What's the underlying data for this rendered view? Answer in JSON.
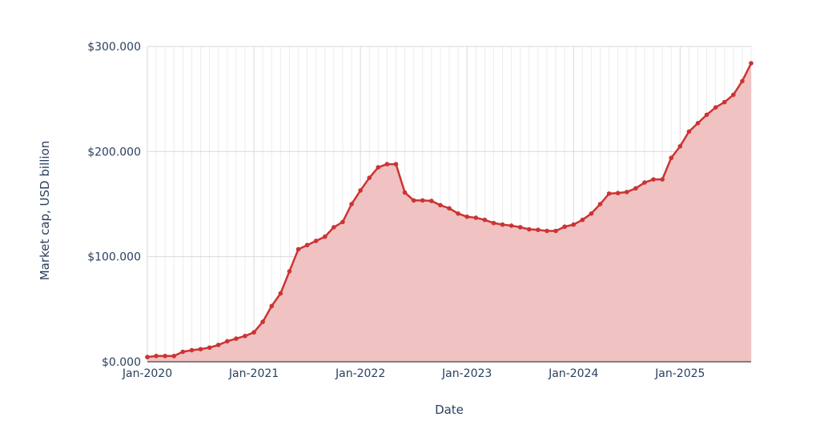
{
  "chart_data": {
    "type": "area",
    "title": "",
    "xlabel": "Date",
    "ylabel": "Market cap, USD billion",
    "x_ticks": [
      "Jan-2020",
      "Jan-2021",
      "Jan-2022",
      "Jan-2023",
      "Jan-2024",
      "Jan-2025"
    ],
    "y_ticks": [
      "$0.000",
      "$100.000",
      "$200.000",
      "$300.000"
    ],
    "ylim": [
      0,
      300
    ],
    "xlim": [
      "2020-01",
      "2025-09"
    ],
    "grid": true,
    "colors": {
      "line": "#cc3333",
      "fill": "#efbfbf",
      "grid": "#d9d9d9",
      "minor_grid": "#ececec",
      "text": "#2a3f5f"
    },
    "series": [
      {
        "x": [
          "2020-01",
          "2020-02",
          "2020-03",
          "2020-04",
          "2020-05",
          "2020-06",
          "2020-07",
          "2020-08",
          "2020-09",
          "2020-10",
          "2020-11",
          "2020-12",
          "2021-01",
          "2021-02",
          "2021-03",
          "2021-04",
          "2021-05",
          "2021-06",
          "2021-07",
          "2021-08",
          "2021-09",
          "2021-10",
          "2021-11",
          "2021-12",
          "2022-01",
          "2022-02",
          "2022-03",
          "2022-04",
          "2022-05",
          "2022-06",
          "2022-07",
          "2022-08",
          "2022-09",
          "2022-10",
          "2022-11",
          "2022-12",
          "2023-01",
          "2023-02",
          "2023-03",
          "2023-04",
          "2023-05",
          "2023-06",
          "2023-07",
          "2023-08",
          "2023-09",
          "2023-10",
          "2023-11",
          "2023-12",
          "2024-01",
          "2024-02",
          "2024-03",
          "2024-04",
          "2024-05",
          "2024-06",
          "2024-07",
          "2024-08",
          "2024-09",
          "2024-10",
          "2024-11",
          "2024-12",
          "2025-01",
          "2025-02",
          "2025-03",
          "2025-04",
          "2025-05",
          "2025-06",
          "2025-07",
          "2025-08",
          "2025-09"
        ],
        "values": [
          4.5,
          5.5,
          5.5,
          5.5,
          9.5,
          11,
          12,
          13.5,
          16,
          19.5,
          22,
          24.5,
          28,
          38,
          53,
          65,
          86,
          107,
          111,
          115,
          119,
          128,
          133,
          150,
          163,
          175,
          185,
          188,
          188,
          161,
          153.5,
          153.5,
          153,
          149,
          146,
          141,
          138,
          137,
          135,
          132,
          130.5,
          129.5,
          128,
          126,
          125.5,
          124.5,
          124.5,
          128.5,
          130.5,
          135,
          141,
          150,
          160,
          160.5,
          161.5,
          165,
          170.5,
          173.5,
          173.5,
          194,
          205,
          219,
          227,
          235,
          242,
          247,
          254,
          267,
          284
        ]
      }
    ]
  }
}
